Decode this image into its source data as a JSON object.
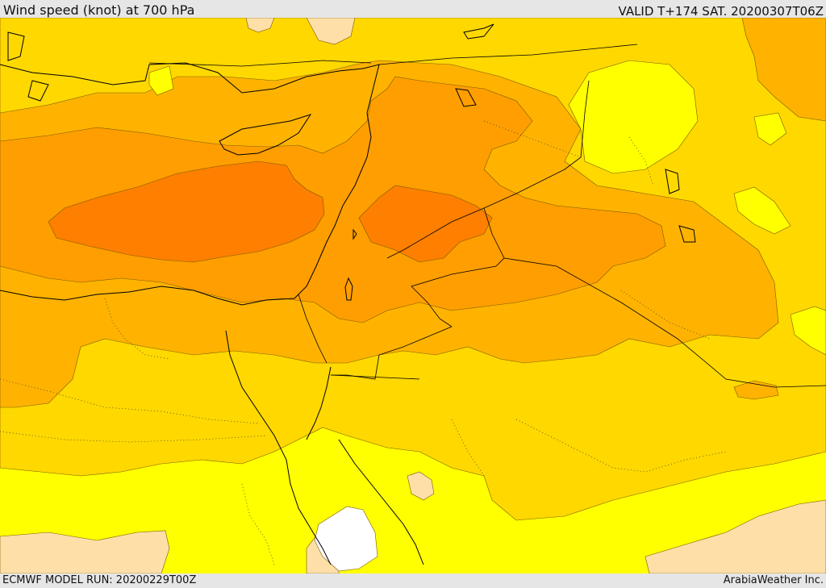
{
  "header": {
    "title": "Wind speed (knot) at 700 hPa",
    "valid_time": "VALID T+174 SAT. 20200307T06Z"
  },
  "footer": {
    "model_run": "ECMWF MODEL RUN: 20200229T00Z",
    "credit": "ArabiaWeather Inc."
  },
  "palette": {
    "calm": "#ffffff",
    "light": "#ffdfa8",
    "band1": "#ffff00",
    "band2": "#ffd800",
    "band3": "#ffb300",
    "band4": "#ff9e00",
    "band5": "#ff7f00",
    "coast": "#000000",
    "contour": "#7a5a00"
  }
}
